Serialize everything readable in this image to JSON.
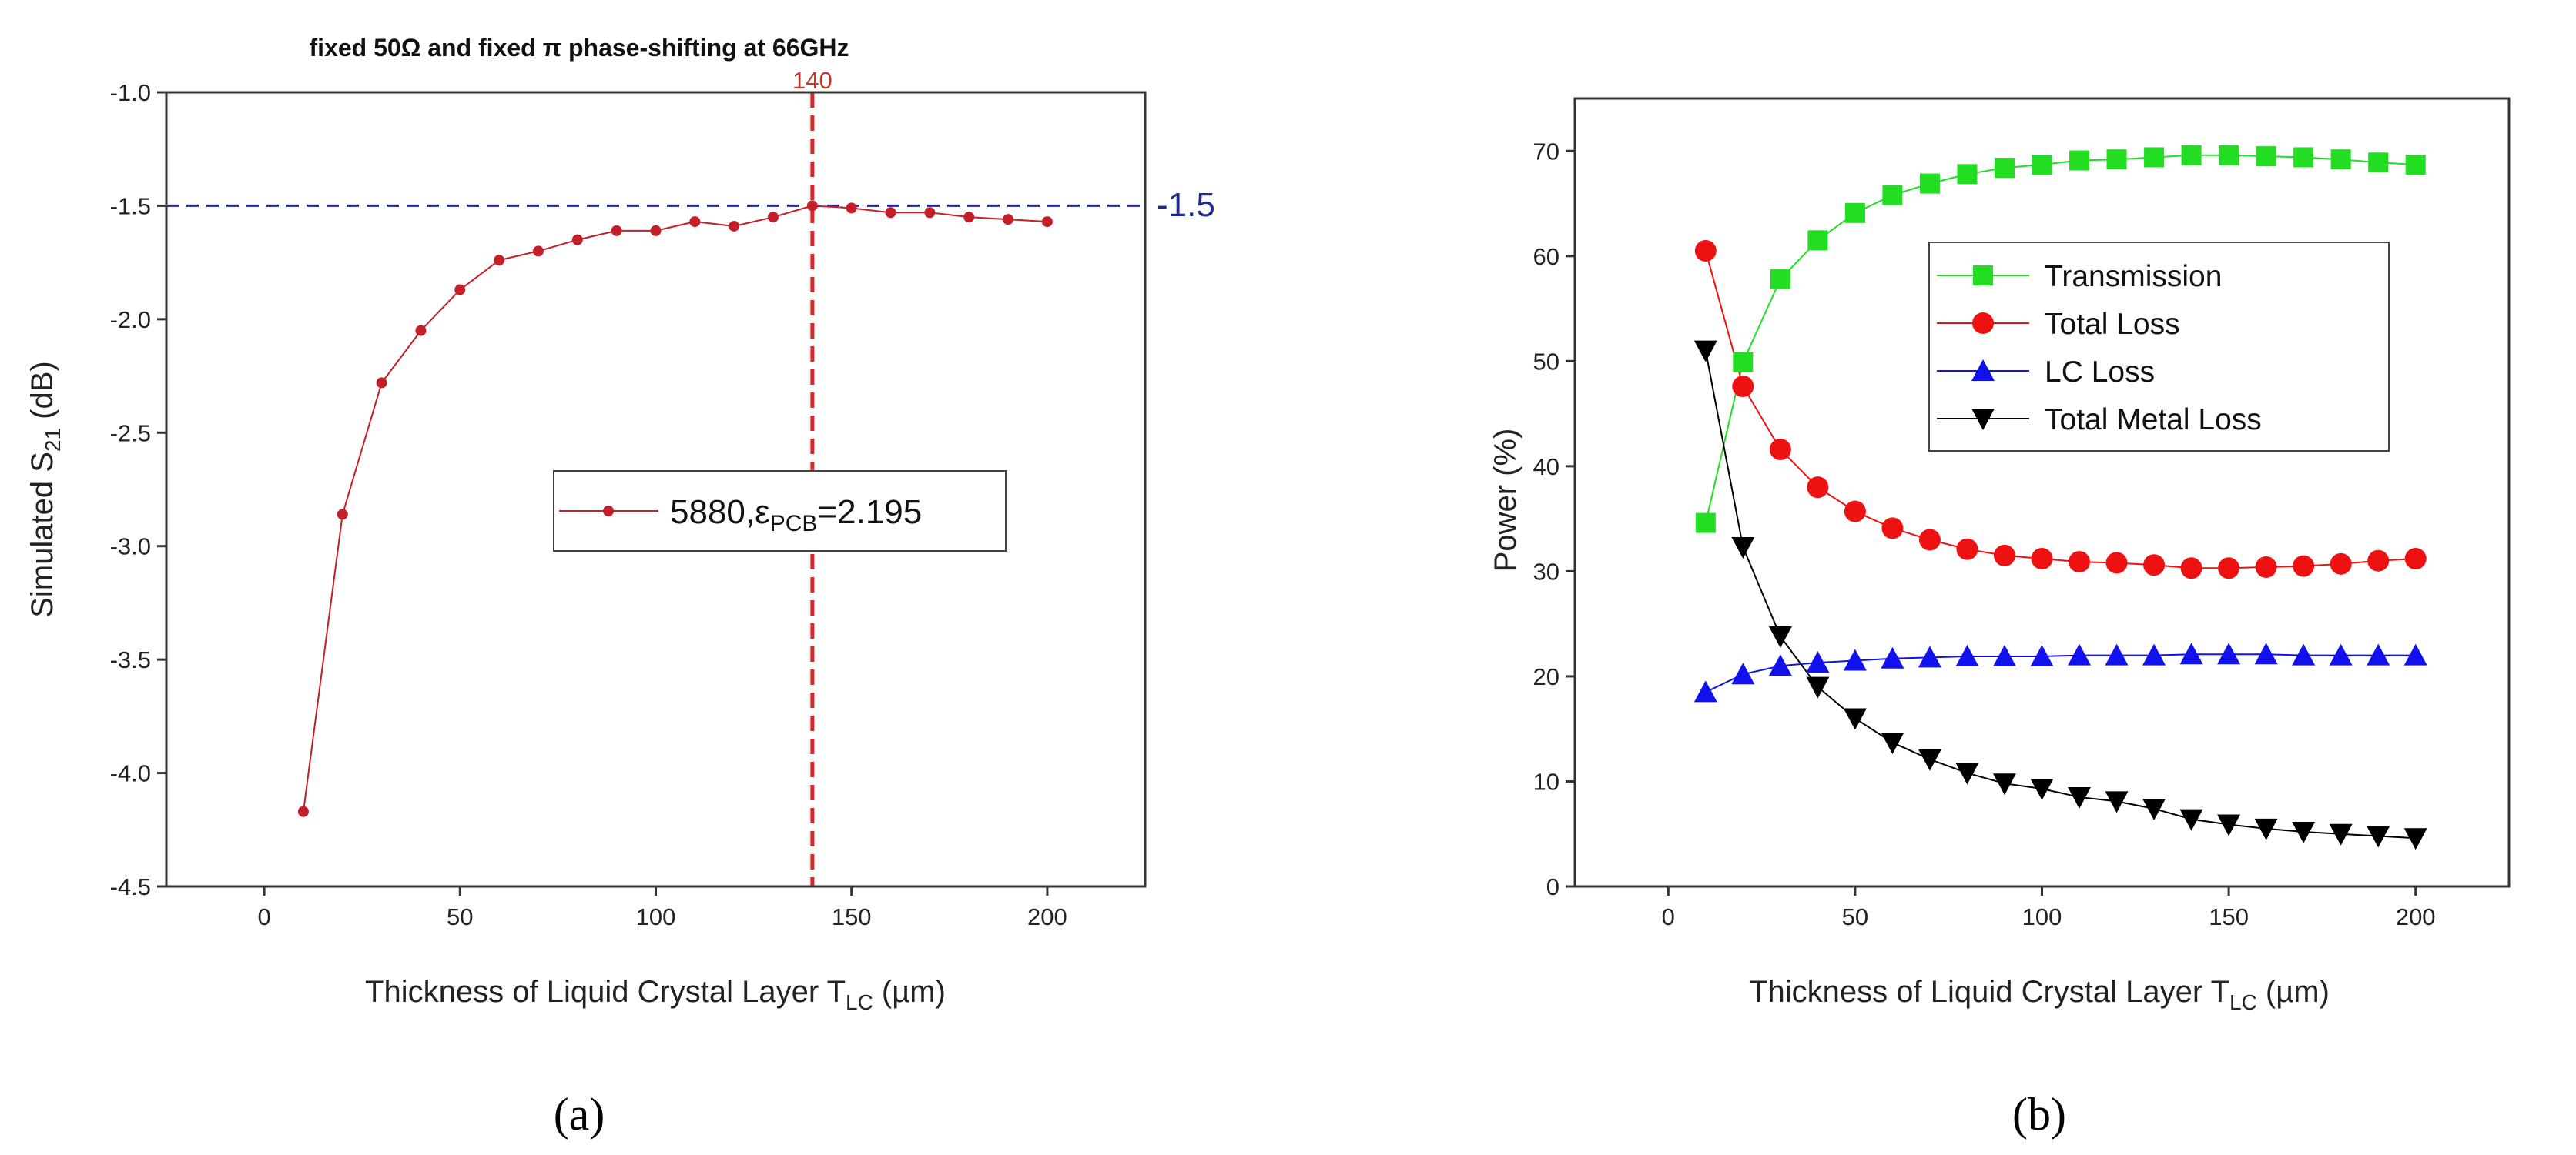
{
  "chart_data": [
    {
      "panel": "a",
      "type": "line",
      "title": "fixed 50Ω and fixed π phase-shifting at 66GHz",
      "xlabel": {
        "main": "Thickness of Liquid Crystal Layer T",
        "sub": "LC",
        "tail": " (µm)"
      },
      "ylabel": {
        "main": "Simulated S",
        "sub": "21",
        "tail": " (dB)"
      },
      "xlim": [
        -25,
        225
      ],
      "ylim": [
        -4.5,
        -1.0
      ],
      "xticks": [
        0,
        50,
        100,
        150,
        200
      ],
      "xtick_labels": [
        "0",
        "50",
        "100",
        "150",
        "200"
      ],
      "yticks": [
        -1.0,
        -1.5,
        -2.0,
        -2.5,
        -3.0,
        -3.5,
        -4.0,
        -4.5
      ],
      "ytick_labels": [
        "-1.0",
        "-1.5",
        "-2.0",
        "-2.5",
        "-3.0",
        "-3.5",
        "-4.0",
        "-4.5"
      ],
      "series": [
        {
          "name": "5880,εPCB=2.195",
          "legend": {
            "main": "5880,ε",
            "sub": "PCB",
            "tail": "=2.195"
          },
          "color": "#c41e28",
          "x": [
            10,
            20,
            30,
            40,
            50,
            60,
            70,
            80,
            90,
            100,
            110,
            120,
            130,
            140,
            150,
            160,
            170,
            180,
            190,
            200
          ],
          "y": [
            -4.17,
            -2.86,
            -2.28,
            -2.05,
            -1.87,
            -1.74,
            -1.7,
            -1.65,
            -1.61,
            -1.61,
            -1.57,
            -1.59,
            -1.55,
            -1.5,
            -1.51,
            -1.53,
            -1.53,
            -1.55,
            -1.56,
            -1.57
          ]
        }
      ],
      "reference_lines": [
        {
          "orientation": "horizontal",
          "value": -1.5,
          "label": "-1.5",
          "color": "#1f2a8a"
        },
        {
          "orientation": "vertical",
          "value": 140,
          "label": "140",
          "color": "#d62728"
        }
      ],
      "panel_label": "(a)"
    },
    {
      "panel": "b",
      "type": "line",
      "xlabel": {
        "main": "Thickness of Liquid Crystal Layer T",
        "sub": "LC",
        "tail": " (µm)"
      },
      "ylabel": {
        "main": "Power (%)",
        "sub": "",
        "tail": ""
      },
      "xlim": [
        -25,
        225
      ],
      "ylim": [
        0,
        75
      ],
      "xticks": [
        0,
        50,
        100,
        150,
        200
      ],
      "xtick_labels": [
        "0",
        "50",
        "100",
        "150",
        "200"
      ],
      "yticks": [
        0,
        10,
        20,
        30,
        40,
        50,
        60,
        70
      ],
      "ytick_labels": [
        "0",
        "10",
        "20",
        "30",
        "40",
        "50",
        "60",
        "70"
      ],
      "x": [
        10,
        20,
        30,
        40,
        50,
        60,
        70,
        80,
        90,
        100,
        110,
        120,
        130,
        140,
        150,
        160,
        170,
        180,
        190,
        200
      ],
      "series": [
        {
          "name": "Transmission",
          "color": "#22dd22",
          "marker": "square",
          "values": [
            34.6,
            49.9,
            57.8,
            61.5,
            64.1,
            65.8,
            66.9,
            67.8,
            68.4,
            68.7,
            69.1,
            69.2,
            69.4,
            69.6,
            69.6,
            69.5,
            69.4,
            69.2,
            68.9,
            68.7
          ]
        },
        {
          "name": "Total Loss",
          "color": "#ee1111",
          "marker": "circle",
          "values": [
            60.5,
            47.6,
            41.6,
            38.0,
            35.7,
            34.1,
            33.0,
            32.1,
            31.5,
            31.2,
            30.9,
            30.8,
            30.6,
            30.3,
            30.3,
            30.4,
            30.5,
            30.7,
            31.0,
            31.2
          ]
        },
        {
          "name": "LC Loss",
          "color": "#1111ee",
          "marker": "triangle-up",
          "values": [
            18.5,
            20.2,
            21.0,
            21.3,
            21.5,
            21.7,
            21.8,
            21.9,
            21.9,
            21.9,
            22.0,
            22.0,
            22.0,
            22.1,
            22.1,
            22.1,
            22.0,
            22.0,
            22.0,
            22.0
          ]
        },
        {
          "name": "Total Metal Loss",
          "color": "#000000",
          "marker": "triangle-down",
          "values": [
            51.0,
            32.3,
            23.8,
            19.0,
            16.0,
            13.7,
            12.1,
            10.8,
            9.8,
            9.3,
            8.5,
            8.1,
            7.4,
            6.4,
            5.9,
            5.5,
            5.2,
            5.0,
            4.8,
            4.6
          ]
        }
      ],
      "legend_position": "upper-right inside plot",
      "panel_label": "(b)"
    }
  ]
}
